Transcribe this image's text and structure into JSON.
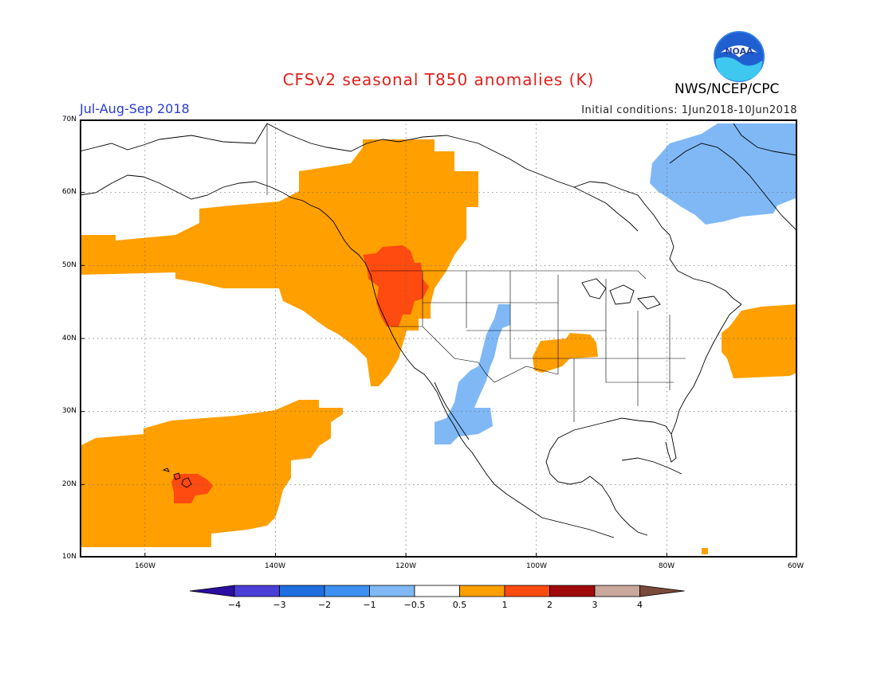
{
  "header": {
    "title": "CFSv2 seasonal T850 anomalies (K)",
    "season": "Jul-Aug-Sep 2018",
    "initial_conditions": "Initial conditions: 1Jun2018-10Jun2018",
    "agency": "NWS/NCEP/CPC",
    "logo_text": "NOAA"
  },
  "map": {
    "projection": "lat-lon",
    "lon_range": [
      -170,
      -60
    ],
    "lat_range": [
      10,
      70
    ],
    "lat_labels": [
      "70N",
      "60N",
      "50N",
      "40N",
      "30N",
      "20N",
      "10N"
    ],
    "lon_labels": [
      "160W",
      "140W",
      "120W",
      "100W",
      "80W",
      "60W"
    ],
    "anomaly_regions": [
      {
        "name": "northeast-pacific-warm",
        "value": "0.5 to 1"
      },
      {
        "name": "pacific-northwest-warm",
        "value": "1 to 2"
      },
      {
        "name": "central-pacific-warm",
        "value": "0.5 to 1"
      },
      {
        "name": "hawaii-warm",
        "value": "1 to 2"
      },
      {
        "name": "hudson-bay-cool",
        "value": "-1 to -0.5"
      },
      {
        "name": "southwest-us-cool",
        "value": "-1 to -0.5"
      },
      {
        "name": "plains-warm",
        "value": "0.5 to 1"
      },
      {
        "name": "northwest-atlantic-warm",
        "value": "0.5 to 1"
      }
    ]
  },
  "colorbar": {
    "labels": [
      "-4",
      "-3",
      "-2",
      "-1",
      "-0.5",
      "0.5",
      "1",
      "2",
      "3",
      "4"
    ],
    "colors": [
      "#2a0fa0",
      "#4b3ed6",
      "#1e6ee0",
      "#3d8ff0",
      "#7fb8f5",
      "#ffffff",
      "#ff9f00",
      "#ff4a10",
      "#a00a0a",
      "#c9a79a",
      "#7a4a3a"
    ]
  },
  "colors": {
    "warm_1": "#ff9f00",
    "warm_2": "#ff4a10",
    "cool_1": "#7fb8f5",
    "title": "#e0201b",
    "season": "#2a3bd6"
  }
}
